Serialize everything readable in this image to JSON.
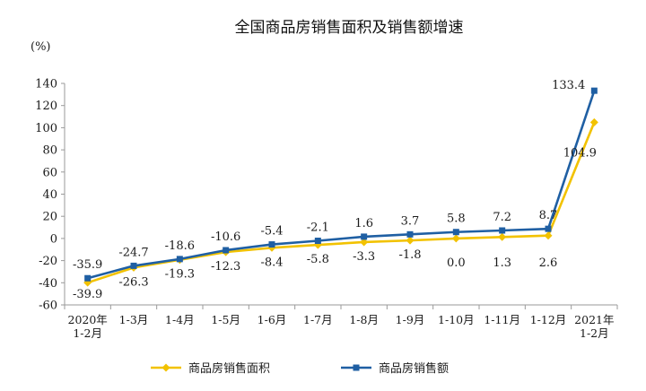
{
  "chart_data": {
    "type": "line",
    "title": "全国商品房销售面积及销售额增速",
    "y_unit": "(%)",
    "ylim": [
      -60,
      140
    ],
    "yticks": [
      140,
      120,
      100,
      80,
      60,
      40,
      20,
      0,
      -20,
      -40,
      -60
    ],
    "categories": [
      [
        "2020年",
        "1-2月"
      ],
      [
        "1-3月"
      ],
      [
        "1-4月"
      ],
      [
        "1-5月"
      ],
      [
        "1-6月"
      ],
      [
        "1-7月"
      ],
      [
        "1-8月"
      ],
      [
        "1-9月"
      ],
      [
        "1-10月"
      ],
      [
        "1-11月"
      ],
      [
        "1-12月"
      ],
      [
        "2021年",
        "1-2月"
      ]
    ],
    "series": [
      {
        "name": "商品房销售面积",
        "color": "#f2c200",
        "marker": "diamond",
        "values": [
          -39.9,
          -26.3,
          -19.3,
          -12.3,
          -8.4,
          -5.8,
          -3.3,
          -1.8,
          0.0,
          1.3,
          2.6,
          104.9
        ],
        "labels": [
          "-39.9",
          "-26.3",
          "-19.3",
          "-12.3",
          "-8.4",
          "-5.8",
          "-3.3",
          "-1.8",
          "0.0",
          "1.3",
          "2.6",
          "104.9"
        ]
      },
      {
        "name": "商品房销售额",
        "color": "#1f5fa3",
        "marker": "square",
        "values": [
          -35.9,
          -24.7,
          -18.6,
          -10.6,
          -5.4,
          -2.1,
          1.6,
          3.7,
          5.8,
          7.2,
          8.7,
          133.4
        ],
        "labels": [
          "-35.9",
          "-24.7",
          "-18.6",
          "-10.6",
          "-5.4",
          "-2.1",
          "1.6",
          "3.7",
          "5.8",
          "7.2",
          "8.7",
          "133.4"
        ]
      }
    ],
    "legend_position": "bottom",
    "grid": false
  }
}
